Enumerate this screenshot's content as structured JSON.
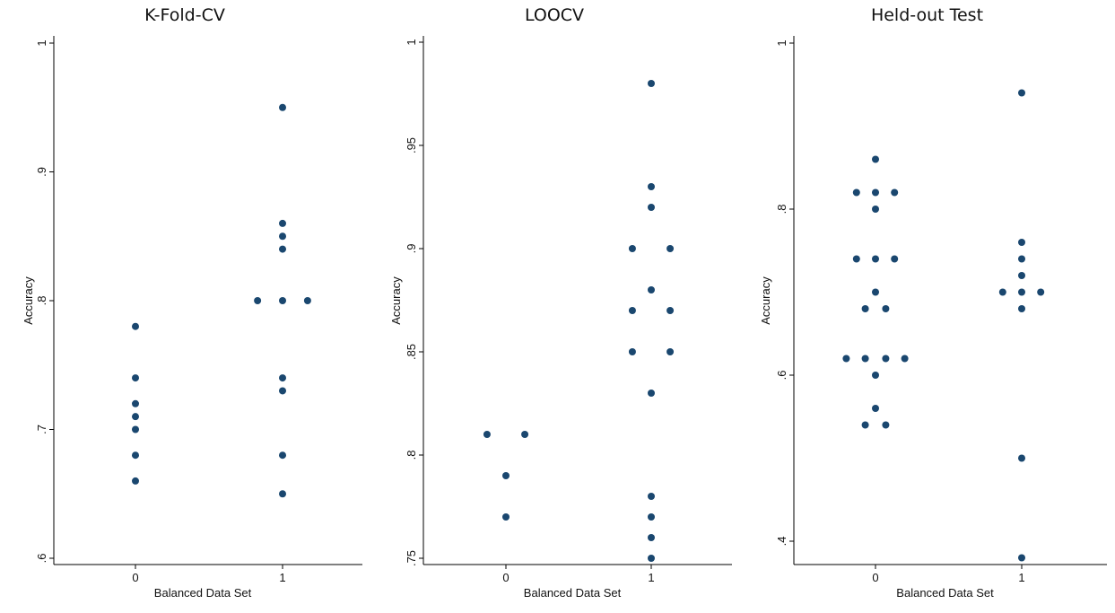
{
  "colors": {
    "marker": "#1a476f",
    "plot_bg": "#ffffff",
    "axis": "#000000"
  },
  "chart_data": [
    {
      "type": "scatter",
      "title": "K-Fold-CV",
      "xlabel": "Balanced Data Set",
      "ylabel": "Accuracy",
      "xticks": [
        "0",
        "1"
      ],
      "yticks": [
        {
          "value": 0.6,
          "label": ".6"
        },
        {
          "value": 0.7,
          "label": ".7"
        },
        {
          "value": 0.8,
          "label": ".8"
        },
        {
          "value": 0.9,
          "label": ".9"
        },
        {
          "value": 1.0,
          "label": "1"
        }
      ],
      "ylim": [
        0.6,
        1.0
      ],
      "xlim": [
        -0.55,
        1.55
      ],
      "grid": false,
      "points": [
        {
          "x": 0,
          "y": 0.78
        },
        {
          "x": 0,
          "y": 0.74
        },
        {
          "x": 0,
          "y": 0.72
        },
        {
          "x": 0,
          "y": 0.71
        },
        {
          "x": 0,
          "y": 0.7
        },
        {
          "x": 0,
          "y": 0.68
        },
        {
          "x": 0,
          "y": 0.66
        },
        {
          "x": 1,
          "y": 0.95
        },
        {
          "x": 1,
          "y": 0.86
        },
        {
          "x": 1,
          "y": 0.85
        },
        {
          "x": 1,
          "y": 0.84
        },
        {
          "x": 0.83,
          "y": 0.8
        },
        {
          "x": 1,
          "y": 0.8
        },
        {
          "x": 1.17,
          "y": 0.8
        },
        {
          "x": 1,
          "y": 0.74
        },
        {
          "x": 1,
          "y": 0.73
        },
        {
          "x": 1,
          "y": 0.68
        },
        {
          "x": 1,
          "y": 0.65
        }
      ]
    },
    {
      "type": "scatter",
      "title": "LOOCV",
      "xlabel": "Balanced Data Set",
      "ylabel": "Accuracy",
      "xticks": [
        "0",
        "1"
      ],
      "yticks": [
        {
          "value": 0.75,
          "label": ".75"
        },
        {
          "value": 0.8,
          "label": ".8"
        },
        {
          "value": 0.85,
          "label": ".85"
        },
        {
          "value": 0.9,
          "label": ".9"
        },
        {
          "value": 0.95,
          "label": ".95"
        },
        {
          "value": 1.0,
          "label": "1"
        }
      ],
      "ylim": [
        0.75,
        1.0
      ],
      "xlim": [
        -0.55,
        1.55
      ],
      "grid": false,
      "points": [
        {
          "x": -0.13,
          "y": 0.81
        },
        {
          "x": 0.13,
          "y": 0.81
        },
        {
          "x": 0,
          "y": 0.79
        },
        {
          "x": 0,
          "y": 0.77
        },
        {
          "x": 1,
          "y": 0.98
        },
        {
          "x": 1,
          "y": 0.93
        },
        {
          "x": 1,
          "y": 0.92
        },
        {
          "x": 0.87,
          "y": 0.9
        },
        {
          "x": 1.13,
          "y": 0.9
        },
        {
          "x": 1,
          "y": 0.88
        },
        {
          "x": 0.87,
          "y": 0.87
        },
        {
          "x": 1.13,
          "y": 0.87
        },
        {
          "x": 0.87,
          "y": 0.85
        },
        {
          "x": 1.13,
          "y": 0.85
        },
        {
          "x": 1,
          "y": 0.83
        },
        {
          "x": 1,
          "y": 0.78
        },
        {
          "x": 1,
          "y": 0.77
        },
        {
          "x": 1,
          "y": 0.76
        },
        {
          "x": 1,
          "y": 0.75
        }
      ]
    },
    {
      "type": "scatter",
      "title": "Held-out Test",
      "xlabel": "Balanced Data Set",
      "ylabel": "Accuracy",
      "xticks": [
        "0",
        "1"
      ],
      "yticks": [
        {
          "value": 0.4,
          "label": ".4"
        },
        {
          "value": 0.6,
          "label": ".6"
        },
        {
          "value": 0.8,
          "label": ".8"
        },
        {
          "value": 1.0,
          "label": "1"
        }
      ],
      "ylim": [
        0.38,
        1.0
      ],
      "xlim": [
        -0.62,
        1.62
      ],
      "grid": false,
      "points": [
        {
          "x": 0,
          "y": 0.86
        },
        {
          "x": -0.13,
          "y": 0.82
        },
        {
          "x": 0,
          "y": 0.82
        },
        {
          "x": 0.13,
          "y": 0.82
        },
        {
          "x": 0,
          "y": 0.8
        },
        {
          "x": -0.13,
          "y": 0.74
        },
        {
          "x": 0,
          "y": 0.74
        },
        {
          "x": 0.13,
          "y": 0.74
        },
        {
          "x": 0,
          "y": 0.7
        },
        {
          "x": -0.07,
          "y": 0.68
        },
        {
          "x": 0.07,
          "y": 0.68
        },
        {
          "x": -0.2,
          "y": 0.62
        },
        {
          "x": -0.07,
          "y": 0.62
        },
        {
          "x": 0.07,
          "y": 0.62
        },
        {
          "x": 0.2,
          "y": 0.62
        },
        {
          "x": 0,
          "y": 0.6
        },
        {
          "x": 0,
          "y": 0.56
        },
        {
          "x": -0.07,
          "y": 0.54
        },
        {
          "x": 0.07,
          "y": 0.54
        },
        {
          "x": 1,
          "y": 0.94
        },
        {
          "x": 1,
          "y": 0.76
        },
        {
          "x": 1,
          "y": 0.74
        },
        {
          "x": 1,
          "y": 0.72
        },
        {
          "x": 0.87,
          "y": 0.7
        },
        {
          "x": 1,
          "y": 0.7
        },
        {
          "x": 1.13,
          "y": 0.7
        },
        {
          "x": 1,
          "y": 0.68
        },
        {
          "x": 1,
          "y": 0.5
        },
        {
          "x": 1,
          "y": 0.38
        }
      ]
    }
  ]
}
